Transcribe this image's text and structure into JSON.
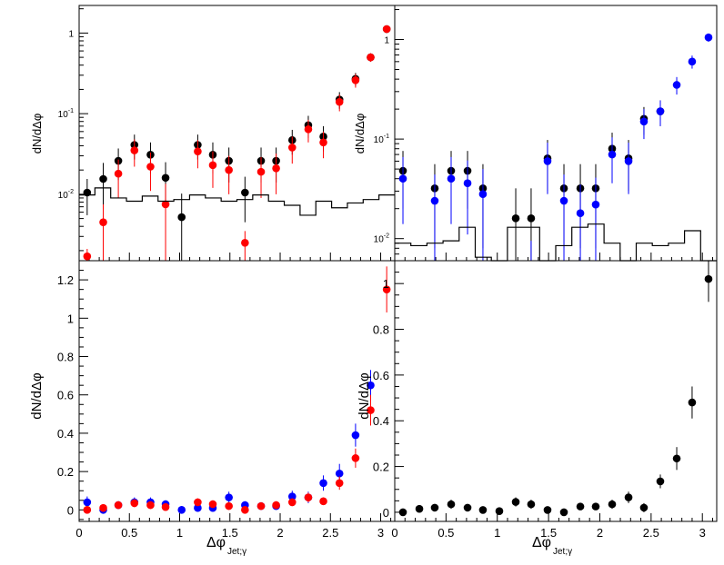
{
  "chart_data": [
    {
      "type": "scatter",
      "panel": "top-left",
      "ylabel": "dN/dΔφ",
      "xlabel": "",
      "yscale": "log",
      "xlim": [
        0,
        3.14
      ],
      "ylim": [
        0.0015,
        2.2
      ],
      "y_ticks": [
        {
          "v": 0.01,
          "base": "10",
          "exp": "-2"
        },
        {
          "v": 0.1,
          "base": "10",
          "exp": "-1"
        },
        {
          "v": 1,
          "base": "1",
          "exp": ""
        }
      ],
      "series": [
        {
          "color": "#000000",
          "kind": "points",
          "x": [
            0.08,
            0.24,
            0.39,
            0.55,
            0.71,
            0.86,
            1.02,
            1.18,
            1.33,
            1.49,
            1.65,
            1.81,
            1.96,
            2.12,
            2.28,
            2.43,
            2.59,
            2.75,
            2.9,
            3.06
          ],
          "y": [
            0.0105,
            0.0155,
            0.026,
            0.041,
            0.031,
            0.016,
            0.0052,
            0.041,
            0.031,
            0.026,
            0.0105,
            0.026,
            0.026,
            0.047,
            0.072,
            0.052,
            0.15,
            0.27,
            0.5,
            1.12
          ],
          "err": [
            0.005,
            0.009,
            0.011,
            0.014,
            0.013,
            0.009,
            0.005,
            0.014,
            0.013,
            0.012,
            0.006,
            0.012,
            0.012,
            0.016,
            0.022,
            0.018,
            0.035,
            0.05,
            0.06,
            0.1
          ]
        },
        {
          "color": "#ff0000",
          "kind": "points",
          "x": [
            0.08,
            0.24,
            0.39,
            0.55,
            0.71,
            0.86,
            1.18,
            1.33,
            1.49,
            1.65,
            1.81,
            1.96,
            2.12,
            2.28,
            2.43,
            2.59,
            2.75,
            2.9,
            3.06
          ],
          "y": [
            0.0017,
            0.0045,
            0.018,
            0.035,
            0.022,
            0.0075,
            0.034,
            0.023,
            0.02,
            0.0025,
            0.019,
            0.021,
            0.038,
            0.064,
            0.044,
            0.14,
            0.26,
            0.5,
            1.12
          ],
          "err": [
            0.0004,
            0.003,
            0.009,
            0.013,
            0.011,
            0.006,
            0.013,
            0.011,
            0.01,
            0.001,
            0.01,
            0.011,
            0.014,
            0.02,
            0.016,
            0.033,
            0.05,
            0.06,
            0.1
          ]
        },
        {
          "color": "#000000",
          "kind": "step",
          "edges": [
            0,
            0.157,
            0.314,
            0.471,
            0.628,
            0.785,
            0.942,
            1.099,
            1.256,
            1.413,
            1.57,
            1.727,
            1.884,
            2.041,
            2.198,
            2.355,
            2.512,
            2.669,
            2.826,
            2.983,
            3.14
          ],
          "y": [
            0.0098,
            0.012,
            0.009,
            0.0082,
            0.0095,
            0.0082,
            0.0086,
            0.0098,
            0.009,
            0.0082,
            0.0086,
            0.0098,
            0.0082,
            0.0073,
            0.0055,
            0.0082,
            0.0068,
            0.0078,
            0.0086,
            0.0098
          ]
        }
      ]
    },
    {
      "type": "scatter",
      "panel": "top-right",
      "ylabel": "dN/dΔφ",
      "xlabel": "",
      "yscale": "log",
      "xlim": [
        0,
        3.14
      ],
      "ylim": [
        0.006,
        2.2
      ],
      "y_ticks": [
        {
          "v": 0.01,
          "base": "10",
          "exp": "-2"
        },
        {
          "v": 0.1,
          "base": "10",
          "exp": "-1"
        },
        {
          "v": 1,
          "base": "1",
          "exp": ""
        }
      ],
      "series": [
        {
          "color": "#000000",
          "kind": "points",
          "x": [
            0.08,
            0.39,
            0.55,
            0.71,
            0.86,
            1.18,
            1.33,
            1.49,
            1.65,
            1.81,
            1.96,
            2.12,
            2.28,
            2.43,
            2.59
          ],
          "y": [
            0.048,
            0.032,
            0.048,
            0.048,
            0.032,
            0.016,
            0.016,
            0.064,
            0.032,
            0.032,
            0.032,
            0.08,
            0.064,
            0.16,
            0.19
          ],
          "err": [
            0.028,
            0.024,
            0.028,
            0.028,
            0.024,
            0.016,
            0.016,
            0.034,
            0.024,
            0.024,
            0.024,
            0.036,
            0.034,
            0.05,
            0.055
          ]
        },
        {
          "color": "#0000ff",
          "kind": "points",
          "x": [
            0.08,
            0.39,
            0.55,
            0.71,
            0.86,
            1.33,
            1.49,
            1.65,
            1.81,
            1.96,
            2.12,
            2.28,
            2.43,
            2.59,
            2.75,
            2.9,
            3.06
          ],
          "y": [
            0.04,
            0.024,
            0.04,
            0.036,
            0.028,
            0.0055,
            0.06,
            0.024,
            0.018,
            0.022,
            0.07,
            0.06,
            0.15,
            0.19,
            0.35,
            0.6,
            1.05
          ],
          "err": [
            0.026,
            0.02,
            0.026,
            0.025,
            0.022,
            0.004,
            0.032,
            0.02,
            0.017,
            0.019,
            0.034,
            0.032,
            0.05,
            0.055,
            0.07,
            0.09,
            0.1
          ]
        },
        {
          "color": "#000000",
          "kind": "step",
          "edges": [
            0,
            0.157,
            0.314,
            0.471,
            0.628,
            0.785,
            0.942,
            1.099,
            1.256,
            1.413,
            1.57,
            1.727,
            1.884,
            2.041,
            2.198,
            2.355,
            2.512,
            2.669,
            2.826,
            2.983,
            3.14
          ],
          "y": [
            0.009,
            0.0085,
            0.009,
            0.0095,
            0.013,
            0.0065,
            0.006,
            0.013,
            0.013,
            0.006,
            0.0085,
            0.013,
            0.014,
            0.009,
            0.006,
            0.009,
            0.0085,
            0.009,
            0.012,
            0.006
          ]
        }
      ]
    },
    {
      "type": "scatter",
      "panel": "bottom-left",
      "ylabel": "dN/dΔφ",
      "xlabel_main": "Δφ",
      "xlabel_sub": "Jet;γ",
      "yscale": "linear",
      "xlim": [
        0,
        3.14
      ],
      "ylim": [
        -0.06,
        1.3
      ],
      "x_ticks": [
        0,
        0.5,
        1,
        1.5,
        2,
        2.5,
        3
      ],
      "x_tick_labels": [
        "0",
        "0.5",
        "1",
        "1.5",
        "2",
        "2.5",
        "3"
      ],
      "y_ticks": [
        0,
        0.2,
        0.4,
        0.6,
        0.8,
        1,
        1.2
      ],
      "y_tick_labels": [
        "0",
        "0.2",
        "0.4",
        "0.6",
        "0.8",
        "1",
        "1.2"
      ],
      "series": [
        {
          "color": "#0000ff",
          "kind": "points",
          "x": [
            0.08,
            0.24,
            0.39,
            0.55,
            0.71,
            0.86,
            1.02,
            1.18,
            1.33,
            1.49,
            1.65,
            1.81,
            1.96,
            2.12,
            2.28,
            2.43,
            2.59,
            2.75,
            2.9
          ],
          "y": [
            0.04,
            0.0,
            0.025,
            0.04,
            0.04,
            0.03,
            0.0,
            0.01,
            0.01,
            0.065,
            0.025,
            0.02,
            0.02,
            0.07,
            0.065,
            0.14,
            0.19,
            0.39,
            0.65
          ],
          "err": [
            0.03,
            0.02,
            0.02,
            0.025,
            0.025,
            0.02,
            0.02,
            0.02,
            0.02,
            0.03,
            0.02,
            0.02,
            0.02,
            0.03,
            0.03,
            0.04,
            0.05,
            0.06,
            0.08
          ]
        },
        {
          "color": "#ff0000",
          "kind": "points",
          "x": [
            0.08,
            0.24,
            0.39,
            0.55,
            0.71,
            0.86,
            1.18,
            1.33,
            1.49,
            1.65,
            1.81,
            1.96,
            2.12,
            2.28,
            2.43,
            2.59,
            2.75,
            2.9,
            3.06
          ],
          "y": [
            0.0,
            0.01,
            0.025,
            0.035,
            0.025,
            0.015,
            0.04,
            0.03,
            0.02,
            0.0,
            0.02,
            0.025,
            0.04,
            0.065,
            0.045,
            0.14,
            0.27,
            0.52,
            1.15
          ],
          "err": [
            0.015,
            0.015,
            0.02,
            0.02,
            0.02,
            0.015,
            0.02,
            0.02,
            0.02,
            0.01,
            0.02,
            0.02,
            0.02,
            0.025,
            0.02,
            0.035,
            0.05,
            0.08,
            0.12
          ]
        }
      ]
    },
    {
      "type": "scatter",
      "panel": "bottom-right",
      "ylabel": "dN/dΔφ",
      "xlabel_main": "Δφ",
      "xlabel_sub": "Jet;γ",
      "yscale": "linear",
      "xlim": [
        0,
        3.14
      ],
      "ylim": [
        -0.04,
        1.1
      ],
      "x_ticks": [
        0,
        0.5,
        1,
        1.5,
        2,
        2.5,
        3
      ],
      "x_tick_labels": [
        "0",
        "0.5",
        "1",
        "1.5",
        "2",
        "2.5",
        "3"
      ],
      "y_ticks": [
        0,
        0.2,
        0.4,
        0.6,
        0.8,
        1
      ],
      "y_tick_labels": [
        "0",
        "0.2",
        "0.4",
        "0.6",
        "0.8",
        "1"
      ],
      "series": [
        {
          "color": "#000000",
          "kind": "points",
          "x": [
            0.08,
            0.24,
            0.39,
            0.55,
            0.71,
            0.86,
            1.02,
            1.18,
            1.33,
            1.49,
            1.65,
            1.81,
            1.96,
            2.12,
            2.28,
            2.43,
            2.59,
            2.75,
            2.9,
            3.06
          ],
          "y": [
            0.0,
            0.015,
            0.02,
            0.035,
            0.02,
            0.01,
            0.005,
            0.045,
            0.035,
            0.01,
            0.0,
            0.025,
            0.025,
            0.035,
            0.065,
            0.02,
            0.135,
            0.235,
            0.48,
            1.02
          ],
          "err": [
            0.015,
            0.015,
            0.015,
            0.02,
            0.015,
            0.015,
            0.015,
            0.02,
            0.02,
            0.015,
            0.015,
            0.015,
            0.015,
            0.02,
            0.025,
            0.02,
            0.03,
            0.05,
            0.07,
            0.1
          ]
        }
      ]
    }
  ]
}
